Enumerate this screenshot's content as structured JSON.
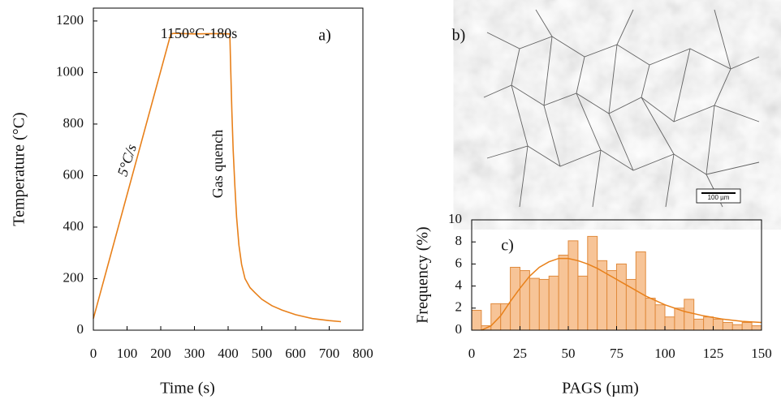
{
  "chart_data": [
    {
      "type": "line",
      "panel_label": "a)",
      "xlabel": "Time (s)",
      "ylabel": "Temperature (°C)",
      "color": "#e8801a",
      "annotations": [
        "1150°C-180s",
        "5°C/s",
        "Gas quench"
      ],
      "x": [
        0,
        230,
        240,
        300,
        360,
        405,
        408,
        411,
        415,
        420,
        425,
        432,
        440,
        450,
        465,
        480,
        500,
        530,
        560,
        600,
        650,
        700,
        735
      ],
      "values": [
        45,
        1150,
        1152,
        1150,
        1151,
        1150,
        1000,
        850,
        700,
        560,
        440,
        330,
        255,
        200,
        165,
        145,
        120,
        95,
        78,
        60,
        45,
        37,
        33
      ],
      "xlim": [
        0,
        800
      ],
      "xticks": [
        0,
        100,
        200,
        300,
        400,
        500,
        600,
        700,
        800
      ],
      "ylim": [
        0,
        1250
      ],
      "yticks": [
        0,
        200,
        400,
        600,
        800,
        1000,
        1200
      ]
    },
    {
      "type": "histogram",
      "panel_label": "c)",
      "xlabel": "PAGS (µm)",
      "ylabel": "Frequency (%)",
      "color": "#f7c497",
      "edge_color": "#e08a3c",
      "fit_color": "#e8801a",
      "bins": [
        0,
        5,
        10,
        15,
        20,
        25,
        30,
        35,
        40,
        45,
        50,
        55,
        60,
        65,
        70,
        75,
        80,
        85,
        90,
        95,
        100,
        105,
        110,
        115,
        120,
        125,
        130,
        135,
        140,
        145,
        150
      ],
      "values": [
        1.8,
        0.4,
        2.4,
        2.4,
        5.7,
        5.4,
        4.7,
        4.6,
        4.9,
        6.8,
        8.1,
        4.9,
        8.5,
        6.3,
        5.4,
        6.0,
        4.6,
        7.1,
        2.9,
        2.3,
        1.2,
        2.0,
        2.8,
        1.0,
        1.2,
        1.0,
        0.7,
        0.5,
        0.7,
        0.4
      ],
      "fit": {
        "x": [
          5,
          10,
          15,
          20,
          25,
          30,
          35,
          40,
          45,
          50,
          55,
          60,
          65,
          70,
          75,
          80,
          85,
          90,
          95,
          100,
          110,
          120,
          130,
          140,
          150
        ],
        "values": [
          0,
          0.4,
          1.3,
          2.6,
          3.8,
          4.9,
          5.7,
          6.2,
          6.5,
          6.5,
          6.3,
          6.0,
          5.6,
          5.1,
          4.6,
          4.1,
          3.6,
          3.1,
          2.7,
          2.3,
          1.7,
          1.3,
          1.0,
          0.8,
          0.7
        ]
      },
      "xlim": [
        0,
        150
      ],
      "xticks": [
        0,
        25,
        50,
        75,
        100,
        125,
        150
      ],
      "ylim": [
        0,
        10
      ],
      "yticks": [
        0,
        2,
        4,
        6,
        8,
        10
      ]
    }
  ],
  "image": {
    "panel_label": "b)",
    "scale_bar": "100 µm"
  }
}
